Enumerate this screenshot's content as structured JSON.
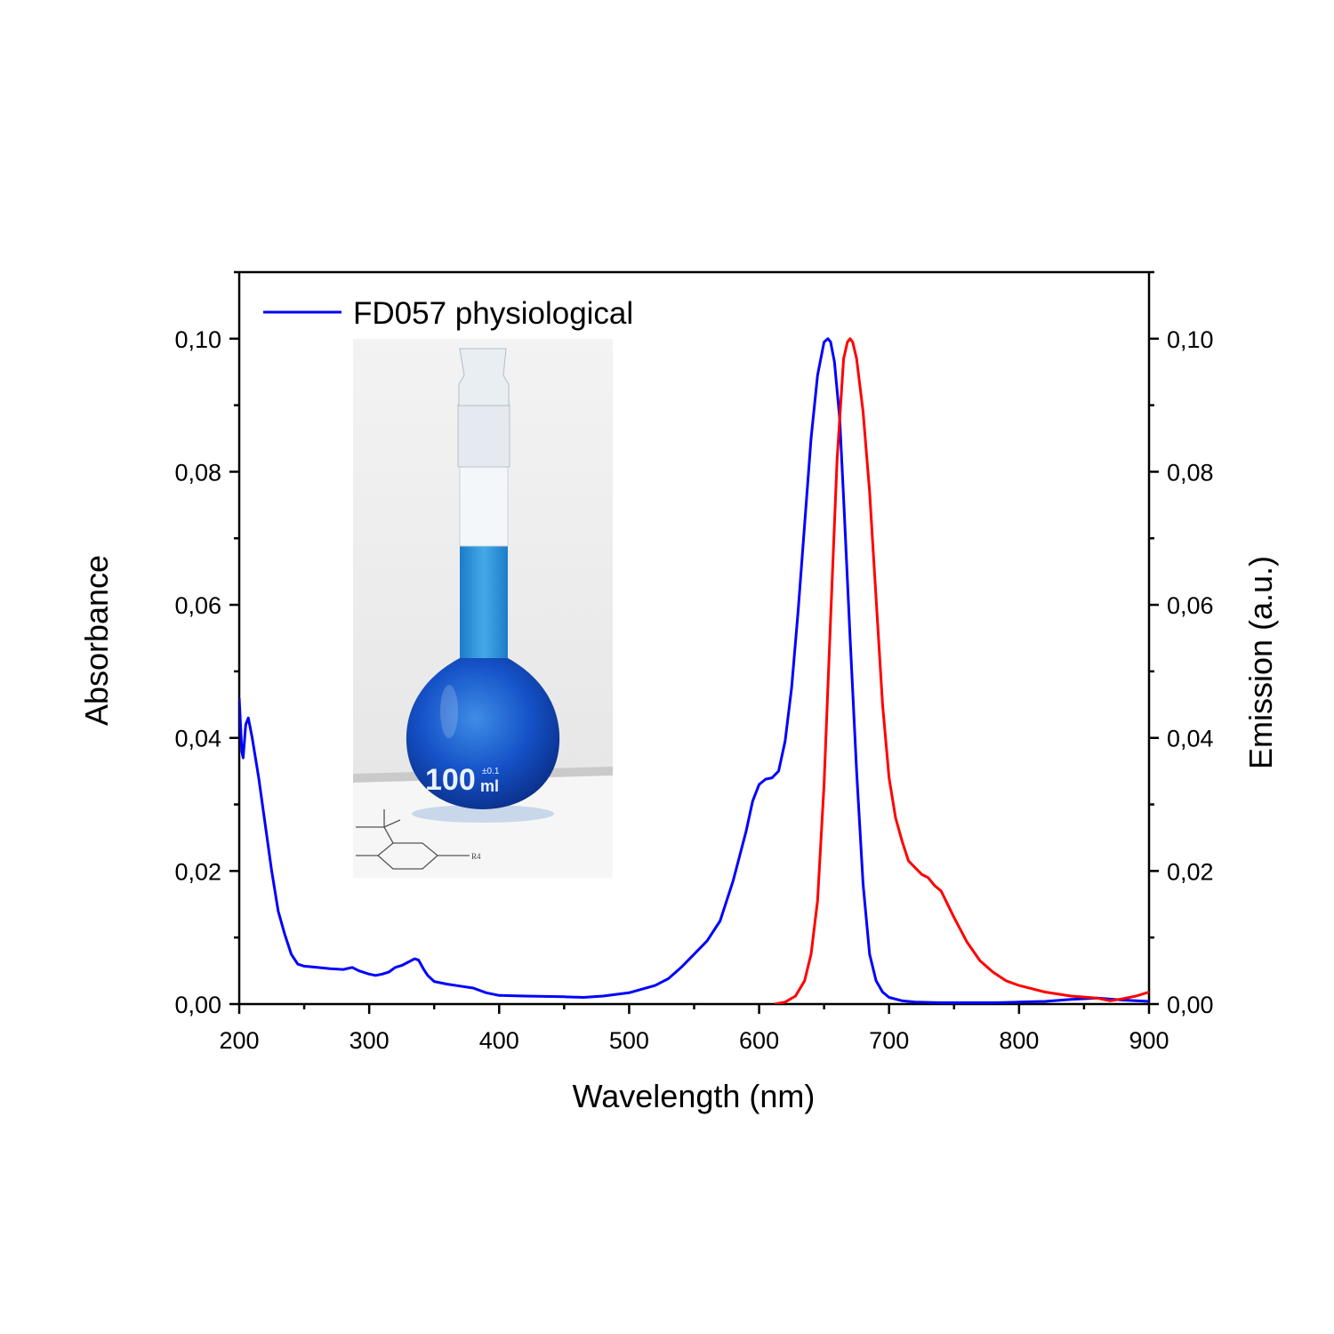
{
  "chart_data": {
    "type": "line",
    "xlabel": "Wavelength (nm)",
    "ylabel": "Absorbance",
    "y2label": "Emission (a.u.)",
    "xlim": [
      200,
      900
    ],
    "ylim": [
      0,
      0.11
    ],
    "y2lim": [
      0,
      0.11
    ],
    "x_ticks": [
      "200",
      "300",
      "400",
      "500",
      "600",
      "700",
      "800",
      "900"
    ],
    "y_ticks": [
      "0,00",
      "0,02",
      "0,04",
      "0,06",
      "0,08",
      "0,10"
    ],
    "y2_ticks": [
      "0,00",
      "0,02",
      "0,04",
      "0,06",
      "0,08",
      "0,10"
    ],
    "legend": {
      "position": "top-left",
      "entries": [
        "FD057 physiological"
      ]
    },
    "series": [
      {
        "name": "FD057 physiological",
        "axis": "left",
        "color": "#0000ff",
        "x": [
          200,
          202,
          203,
          205,
          207,
          210,
          215,
          220,
          225,
          230,
          235,
          240,
          245,
          250,
          260,
          270,
          280,
          287,
          292,
          300,
          305,
          310,
          315,
          320,
          325,
          330,
          335,
          338,
          342,
          345,
          350,
          360,
          370,
          380,
          390,
          400,
          420,
          450,
          465,
          480,
          500,
          520,
          530,
          540,
          550,
          560,
          570,
          580,
          590,
          595,
          600,
          605,
          610,
          615,
          620,
          625,
          630,
          635,
          640,
          645,
          650,
          653,
          655,
          658,
          662,
          665,
          670,
          675,
          680,
          685,
          690,
          695,
          700,
          710,
          720,
          740,
          760,
          780,
          800,
          820,
          840,
          860,
          880,
          900
        ],
        "y": [
          0.046,
          0.038,
          0.037,
          0.042,
          0.043,
          0.04,
          0.034,
          0.027,
          0.02,
          0.014,
          0.0105,
          0.0075,
          0.006,
          0.0057,
          0.0055,
          0.0053,
          0.0052,
          0.0055,
          0.005,
          0.0045,
          0.0043,
          0.0045,
          0.0048,
          0.0055,
          0.0058,
          0.0063,
          0.0068,
          0.0066,
          0.0052,
          0.0043,
          0.0034,
          0.003,
          0.0027,
          0.0024,
          0.0017,
          0.0013,
          0.0012,
          0.0011,
          0.001,
          0.0012,
          0.0017,
          0.0028,
          0.0038,
          0.0055,
          0.0075,
          0.0095,
          0.0125,
          0.0185,
          0.026,
          0.0305,
          0.033,
          0.0338,
          0.034,
          0.035,
          0.0395,
          0.0475,
          0.059,
          0.072,
          0.085,
          0.0945,
          0.0995,
          0.1,
          0.0995,
          0.0965,
          0.088,
          0.076,
          0.055,
          0.035,
          0.018,
          0.0075,
          0.0035,
          0.0018,
          0.001,
          0.0005,
          0.0003,
          0.0002,
          0.0002,
          0.0002,
          0.0003,
          0.0004,
          0.0007,
          0.0009,
          0.0006,
          0.0004
        ]
      },
      {
        "axis": "right",
        "color": "#ff0000",
        "x": [
          612,
          620,
          628,
          635,
          640,
          645,
          650,
          655,
          660,
          665,
          668,
          670,
          672,
          675,
          680,
          685,
          690,
          695,
          700,
          705,
          710,
          715,
          720,
          725,
          730,
          735,
          740,
          745,
          750,
          760,
          770,
          780,
          790,
          800,
          820,
          840,
          860,
          870,
          880,
          890,
          900
        ],
        "y": [
          0.0,
          0.0003,
          0.0012,
          0.0035,
          0.0075,
          0.0155,
          0.033,
          0.058,
          0.082,
          0.097,
          0.0995,
          0.1,
          0.0995,
          0.097,
          0.089,
          0.077,
          0.061,
          0.045,
          0.034,
          0.028,
          0.0245,
          0.0215,
          0.0205,
          0.0195,
          0.019,
          0.0178,
          0.017,
          0.015,
          0.013,
          0.0093,
          0.0065,
          0.0048,
          0.0035,
          0.0028,
          0.0018,
          0.0012,
          0.0009,
          0.0005,
          0.0008,
          0.0012,
          0.0018
        ]
      }
    ],
    "inset": {
      "flask_marking_value": "100",
      "flask_marking_unit": "ml",
      "flask_tolerance": "±0.1",
      "structure_label": "R4"
    }
  }
}
